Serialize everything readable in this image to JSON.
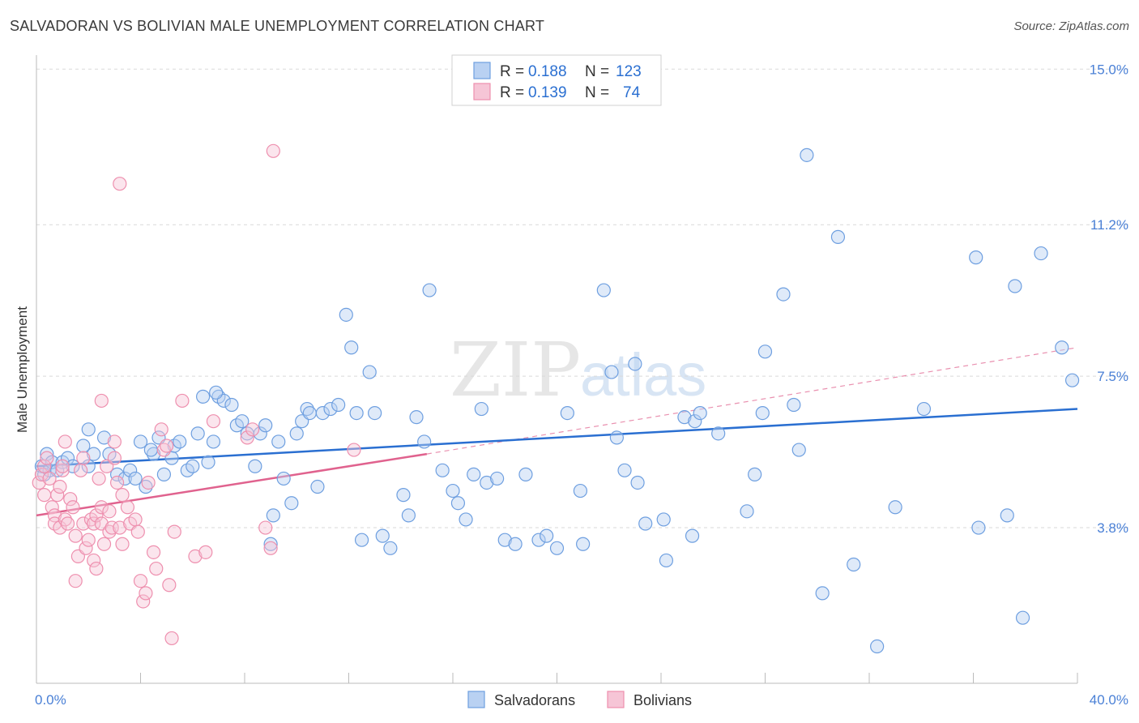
{
  "title": "SALVADORAN VS BOLIVIAN MALE UNEMPLOYMENT CORRELATION CHART",
  "source": "Source: ZipAtlas.com",
  "watermark": {
    "zip": "ZIP",
    "atlas": "atlas"
  },
  "colors": {
    "salvadorans": "#6e9fe0",
    "salvadorans_fill": "#b9d1f2",
    "salvadorans_line": "#2a6fd1",
    "bolivians": "#ee8fae",
    "bolivians_fill": "#f6c5d6",
    "bolivians_line": "#e0628e",
    "tick_label": "#4a80d6",
    "grid": "#d9d9d9"
  },
  "legend": {
    "rows": [
      {
        "r_label": "R =",
        "r_value": "0.188",
        "n_label": "N =",
        "n_value": "123"
      },
      {
        "r_label": "R =",
        "r_value": "0.139",
        "n_label": "N =",
        "n_value": "74"
      }
    ]
  },
  "bottom_legend": [
    "Salvadorans",
    "Bolivians"
  ],
  "chart_data": {
    "type": "scatter",
    "title": "SALVADORAN VS BOLIVIAN MALE UNEMPLOYMENT CORRELATION CHART",
    "xlabel": "",
    "ylabel": "Male Unemployment",
    "xlim": [
      0,
      40
    ],
    "ylim": [
      0,
      15.5
    ],
    "x_tick_labels": [
      "0.0%",
      "40.0%"
    ],
    "y_ticks": [
      3.8,
      7.5,
      11.2,
      15.0
    ],
    "y_tick_labels": [
      "3.8%",
      "7.5%",
      "11.2%",
      "15.0%"
    ],
    "grid": "horizontal dashed",
    "legend_position": "top-center",
    "series": [
      {
        "name": "Salvadorans",
        "r": 0.188,
        "n": 123,
        "trend": {
          "x": [
            0,
            40
          ],
          "y": [
            5.3,
            6.7
          ]
        },
        "points": [
          [
            0.2,
            5.3
          ],
          [
            0.3,
            5.1
          ],
          [
            0.4,
            5.6
          ],
          [
            0.5,
            5.2
          ],
          [
            0.6,
            5.4
          ],
          [
            0.8,
            5.2
          ],
          [
            1.0,
            5.4
          ],
          [
            1.2,
            5.5
          ],
          [
            1.4,
            5.3
          ],
          [
            1.8,
            5.8
          ],
          [
            2.0,
            5.3
          ],
          [
            2.2,
            5.6
          ],
          [
            2.6,
            6.0
          ],
          [
            2.8,
            5.6
          ],
          [
            3.1,
            5.1
          ],
          [
            3.4,
            5.0
          ],
          [
            3.6,
            5.2
          ],
          [
            3.8,
            5.0
          ],
          [
            4.0,
            5.9
          ],
          [
            4.2,
            4.8
          ],
          [
            4.5,
            5.6
          ],
          [
            4.7,
            6.0
          ],
          [
            4.9,
            5.1
          ],
          [
            5.2,
            5.5
          ],
          [
            5.3,
            5.8
          ],
          [
            5.5,
            5.9
          ],
          [
            5.8,
            5.2
          ],
          [
            6.0,
            5.3
          ],
          [
            6.2,
            6.1
          ],
          [
            6.4,
            7.0
          ],
          [
            6.6,
            5.4
          ],
          [
            6.8,
            5.9
          ],
          [
            7.0,
            7.0
          ],
          [
            7.2,
            6.9
          ],
          [
            7.5,
            6.8
          ],
          [
            7.7,
            6.3
          ],
          [
            7.9,
            6.4
          ],
          [
            8.1,
            6.1
          ],
          [
            8.4,
            5.3
          ],
          [
            8.6,
            6.1
          ],
          [
            8.8,
            6.3
          ],
          [
            9.1,
            4.1
          ],
          [
            9.3,
            5.9
          ],
          [
            9.5,
            5.0
          ],
          [
            9.8,
            4.4
          ],
          [
            10.0,
            6.1
          ],
          [
            10.2,
            6.4
          ],
          [
            10.4,
            6.7
          ],
          [
            10.5,
            6.6
          ],
          [
            10.8,
            4.8
          ],
          [
            11.0,
            6.6
          ],
          [
            11.3,
            6.7
          ],
          [
            11.6,
            6.8
          ],
          [
            11.9,
            9.0
          ],
          [
            12.1,
            8.2
          ],
          [
            12.3,
            6.6
          ],
          [
            12.8,
            7.6
          ],
          [
            13.0,
            6.6
          ],
          [
            13.3,
            3.6
          ],
          [
            13.6,
            3.3
          ],
          [
            14.1,
            4.6
          ],
          [
            14.3,
            4.1
          ],
          [
            14.6,
            6.5
          ],
          [
            14.9,
            5.9
          ],
          [
            15.1,
            9.6
          ],
          [
            15.6,
            5.2
          ],
          [
            16.0,
            4.7
          ],
          [
            16.2,
            4.4
          ],
          [
            16.5,
            4.0
          ],
          [
            16.8,
            5.1
          ],
          [
            17.1,
            6.7
          ],
          [
            17.3,
            4.9
          ],
          [
            17.7,
            5.0
          ],
          [
            18.0,
            3.5
          ],
          [
            18.4,
            3.4
          ],
          [
            18.8,
            5.1
          ],
          [
            19.3,
            3.5
          ],
          [
            19.6,
            3.6
          ],
          [
            20.0,
            3.3
          ],
          [
            20.4,
            6.6
          ],
          [
            20.9,
            4.7
          ],
          [
            21.0,
            3.4
          ],
          [
            21.8,
            9.6
          ],
          [
            22.1,
            7.6
          ],
          [
            22.3,
            6.0
          ],
          [
            22.6,
            5.2
          ],
          [
            23.0,
            7.8
          ],
          [
            23.1,
            4.9
          ],
          [
            23.4,
            3.9
          ],
          [
            24.1,
            4.0
          ],
          [
            24.2,
            3.0
          ],
          [
            24.9,
            6.5
          ],
          [
            25.2,
            3.6
          ],
          [
            25.3,
            6.4
          ],
          [
            25.5,
            6.6
          ],
          [
            26.2,
            6.1
          ],
          [
            27.3,
            4.2
          ],
          [
            27.6,
            5.1
          ],
          [
            27.9,
            6.6
          ],
          [
            28.0,
            8.1
          ],
          [
            28.7,
            9.5
          ],
          [
            29.1,
            6.8
          ],
          [
            29.3,
            5.7
          ],
          [
            29.6,
            12.9
          ],
          [
            30.8,
            10.9
          ],
          [
            30.2,
            2.2
          ],
          [
            31.4,
            2.9
          ],
          [
            32.3,
            0.9
          ],
          [
            33.0,
            4.3
          ],
          [
            34.1,
            6.7
          ],
          [
            36.1,
            10.4
          ],
          [
            36.2,
            3.8
          ],
          [
            37.6,
            9.7
          ],
          [
            37.3,
            4.1
          ],
          [
            37.9,
            1.6
          ],
          [
            38.6,
            10.5
          ],
          [
            39.4,
            8.2
          ],
          [
            39.8,
            7.4
          ],
          [
            2.0,
            6.2
          ],
          [
            4.4,
            5.7
          ],
          [
            6.9,
            7.1
          ],
          [
            9.0,
            3.4
          ],
          [
            12.5,
            3.5
          ]
        ]
      },
      {
        "name": "Bolivians",
        "r": 0.139,
        "n": 74,
        "trend": {
          "x": [
            0,
            15
          ],
          "y": [
            4.1,
            5.6
          ]
        },
        "trend_extension": {
          "x": [
            15,
            40
          ],
          "y": [
            5.6,
            8.2
          ]
        },
        "points": [
          [
            0.1,
            4.9
          ],
          [
            0.2,
            5.1
          ],
          [
            0.3,
            5.3
          ],
          [
            0.3,
            4.6
          ],
          [
            0.4,
            5.5
          ],
          [
            0.5,
            5.0
          ],
          [
            0.6,
            4.3
          ],
          [
            0.7,
            4.1
          ],
          [
            0.7,
            3.9
          ],
          [
            0.8,
            4.6
          ],
          [
            0.9,
            3.8
          ],
          [
            1.0,
            5.2
          ],
          [
            1.1,
            4.0
          ],
          [
            1.2,
            3.9
          ],
          [
            1.3,
            4.5
          ],
          [
            1.4,
            4.3
          ],
          [
            1.5,
            3.6
          ],
          [
            1.5,
            2.5
          ],
          [
            1.6,
            3.1
          ],
          [
            1.7,
            5.2
          ],
          [
            1.8,
            3.9
          ],
          [
            1.9,
            3.3
          ],
          [
            2.0,
            3.5
          ],
          [
            2.1,
            4.0
          ],
          [
            2.2,
            3.0
          ],
          [
            2.2,
            3.9
          ],
          [
            2.3,
            4.1
          ],
          [
            2.3,
            2.8
          ],
          [
            2.4,
            5.0
          ],
          [
            2.5,
            4.3
          ],
          [
            2.5,
            3.9
          ],
          [
            2.6,
            3.4
          ],
          [
            2.7,
            5.3
          ],
          [
            2.8,
            3.7
          ],
          [
            2.8,
            4.2
          ],
          [
            2.9,
            3.8
          ],
          [
            3.0,
            5.5
          ],
          [
            3.1,
            4.9
          ],
          [
            3.2,
            3.8
          ],
          [
            3.3,
            4.6
          ],
          [
            3.3,
            3.4
          ],
          [
            3.5,
            4.3
          ],
          [
            3.6,
            3.9
          ],
          [
            3.8,
            4.0
          ],
          [
            3.9,
            3.7
          ],
          [
            4.0,
            2.5
          ],
          [
            4.1,
            2.0
          ],
          [
            4.2,
            2.2
          ],
          [
            4.5,
            3.2
          ],
          [
            4.6,
            2.8
          ],
          [
            4.8,
            6.2
          ],
          [
            4.9,
            5.7
          ],
          [
            5.1,
            2.4
          ],
          [
            5.2,
            1.1
          ],
          [
            5.3,
            3.7
          ],
          [
            5.6,
            6.9
          ],
          [
            6.1,
            3.1
          ],
          [
            6.5,
            3.2
          ],
          [
            6.8,
            6.4
          ],
          [
            8.1,
            6.0
          ],
          [
            8.3,
            6.2
          ],
          [
            8.8,
            3.8
          ],
          [
            9.0,
            3.3
          ],
          [
            9.1,
            13.0
          ],
          [
            3.2,
            12.2
          ],
          [
            2.5,
            6.9
          ],
          [
            1.0,
            5.3
          ],
          [
            1.1,
            5.9
          ],
          [
            3.0,
            5.9
          ],
          [
            5.0,
            5.8
          ],
          [
            4.3,
            4.9
          ],
          [
            1.8,
            5.5
          ],
          [
            0.9,
            4.8
          ],
          [
            12.2,
            5.7
          ]
        ]
      }
    ]
  }
}
